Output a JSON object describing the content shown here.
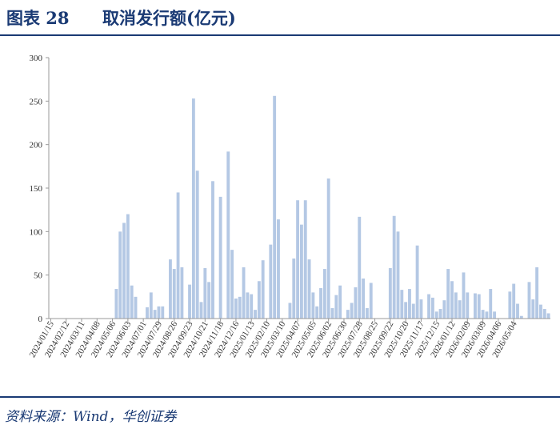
{
  "figure": {
    "label": "图表 28",
    "title": "取消发行额(亿元)"
  },
  "source_note": "资料来源：Wind，华创证券",
  "colors": {
    "bar": "#b4c8e4",
    "brand": "#1a3a74",
    "axis": "#9a9a9a"
  },
  "chart_data": {
    "type": "bar",
    "title": "",
    "xlabel": "",
    "ylabel": "",
    "ylim": [
      0,
      300
    ],
    "yticks": [
      0,
      50,
      100,
      150,
      200,
      250,
      300
    ],
    "xtick_labels": [
      "2024/01/15",
      "2024/02/12",
      "2024/03/11",
      "2024/04/08",
      "2024/05/06",
      "2024/06/03",
      "2024/07/01",
      "2024/07/29",
      "2024/08/26",
      "2024/09/23",
      "2024/10/21",
      "2024/11/18",
      "2024/12/16",
      "2025/01/13",
      "2025/02/10",
      "2025/03/10",
      "2025/04/07",
      "2025/05/05",
      "2025/06/02",
      "2025/06/30",
      "2025/07/28",
      "2025/08/25",
      "2025/09/22",
      "2025/10/20",
      "2025/11/17",
      "2025/12/15",
      "2026/01/12",
      "2026/02/09",
      "2026/03/09",
      "2026/04/06",
      "2026/05/04"
    ],
    "grid": false,
    "values": [
      0,
      0,
      0,
      0,
      0,
      0,
      0,
      0,
      0,
      0,
      0,
      0,
      0,
      0,
      0,
      0,
      0,
      34,
      100,
      110,
      120,
      38,
      25,
      0,
      0,
      13,
      30,
      10,
      14,
      14,
      0,
      68,
      57,
      145,
      59,
      0,
      39,
      253,
      170,
      19,
      58,
      42,
      158,
      0,
      140,
      0,
      192,
      79,
      23,
      25,
      59,
      30,
      28,
      10,
      43,
      67,
      0,
      85,
      256,
      114,
      0,
      0,
      18,
      69,
      136,
      108,
      136,
      68,
      30,
      14,
      35,
      57,
      161,
      12,
      27,
      38,
      0,
      10,
      18,
      36,
      117,
      46,
      12,
      41,
      0,
      0,
      0,
      0,
      58,
      118,
      100,
      33,
      19,
      34,
      17,
      84,
      22,
      0,
      28,
      24,
      8,
      11,
      21,
      57,
      43,
      30,
      21,
      53,
      30,
      0,
      29,
      28,
      10,
      8,
      34,
      8,
      0,
      0,
      0,
      31,
      40,
      17,
      3,
      0,
      42,
      22,
      59,
      16,
      11,
      6
    ]
  }
}
